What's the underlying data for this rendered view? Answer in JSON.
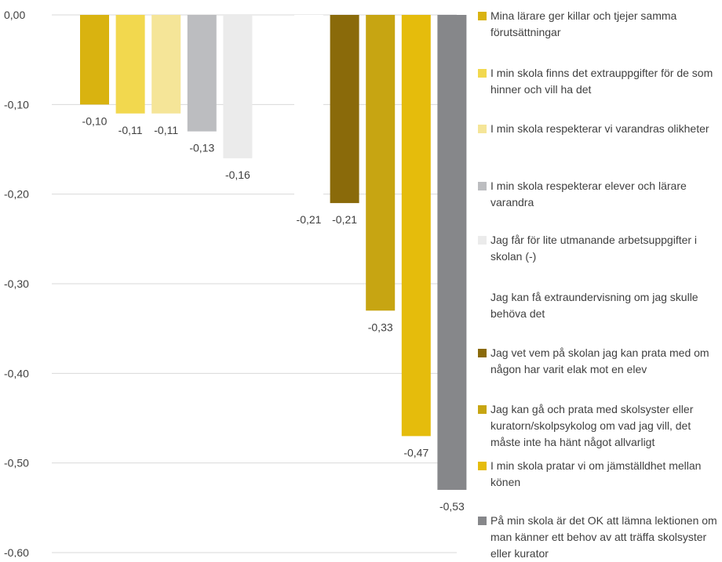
{
  "chart_data": {
    "type": "bar",
    "ylim": [
      -0.6,
      0
    ],
    "yticks": [
      "0,00",
      "-0,10",
      "-0,20",
      "-0,30",
      "-0,40",
      "-0,50",
      "-0,60"
    ],
    "grid": true,
    "legend_position": "right",
    "groups": [
      {
        "series": [
          0,
          1,
          2,
          3,
          4
        ]
      },
      {
        "series": [
          5,
          6,
          7,
          8,
          9
        ]
      }
    ],
    "series": [
      {
        "name": "Mina lärare ger killar och tjejer samma förutsättningar",
        "value": -0.1,
        "label": "-0,10",
        "color": "#D9B310"
      },
      {
        "name": "I min skola finns det extrauppgifter för de som hinner och vill ha det",
        "value": -0.11,
        "label": "-0,11",
        "color": "#F2D84E"
      },
      {
        "name": "I min skola respekterar vi varandras olikheter",
        "value": -0.11,
        "label": "-0,11",
        "color": "#F5E598"
      },
      {
        "name": "I min skola respekterar elever och lärare varandra",
        "value": -0.13,
        "label": "-0,13",
        "color": "#BCBDC0"
      },
      {
        "name": "Jag får för lite utmanande arbetsuppgifter i skolan (-)",
        "value": -0.16,
        "label": "-0,16",
        "color": "#EBEBEB"
      },
      {
        "name": "Jag kan få extraundervisning om jag skulle behöva det",
        "value": -0.21,
        "label": "-0,21",
        "color": "#FFFFFF"
      },
      {
        "name": "Jag vet vem på skolan jag kan prata med om någon har varit elak mot en elev",
        "value": -0.21,
        "label": "-0,21",
        "color": "#8A6A0A"
      },
      {
        "name": "Jag kan gå och prata med skolsyster eller kuratorn/skolpsykolog om vad jag vill, det måste inte ha hänt något allvarligt",
        "value": -0.33,
        "label": "-0,33",
        "color": "#C7A512"
      },
      {
        "name": "I min skola pratar vi om jämställdhet mellan könen",
        "value": -0.47,
        "label": "-0,47",
        "color": "#E5BC0C"
      },
      {
        "name": "På min skola är det OK att lämna lektionen om man känner ett behov av att träffa skolsyster eller kurator",
        "value": -0.53,
        "label": "-0,53",
        "color": "#86878A"
      }
    ]
  }
}
